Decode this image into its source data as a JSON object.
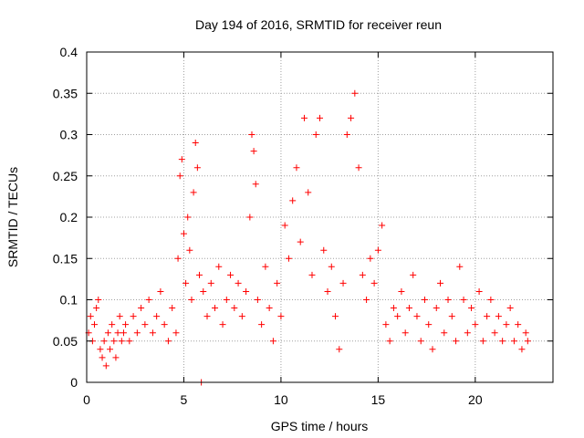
{
  "chart_data": {
    "type": "scatter",
    "title": "Day 194 of 2016, SRMTID for receiver reun",
    "xlabel": "GPS time / hours",
    "ylabel": "SRMTID / TECUs",
    "xlim": [
      0,
      24
    ],
    "ylim": [
      0,
      0.4
    ],
    "xticks": [
      0,
      5,
      10,
      15,
      20
    ],
    "xtick_labels": [
      "0",
      "5",
      "10",
      "15",
      "20"
    ],
    "yticks": [
      0,
      0.05,
      0.1,
      0.15,
      0.2,
      0.25,
      0.3,
      0.35,
      0.4
    ],
    "ytick_labels": [
      "0",
      "0.05",
      "0.1",
      "0.15",
      "0.2",
      "0.25",
      "0.3",
      "0.35",
      "0.4"
    ],
    "grid": true,
    "marker": "+",
    "color": "#ff0000",
    "series": [
      {
        "name": "SRMTID",
        "points": [
          [
            0.1,
            0.06
          ],
          [
            0.2,
            0.08
          ],
          [
            0.3,
            0.05
          ],
          [
            0.4,
            0.07
          ],
          [
            0.5,
            0.09
          ],
          [
            0.6,
            0.1
          ],
          [
            0.7,
            0.04
          ],
          [
            0.8,
            0.03
          ],
          [
            0.9,
            0.05
          ],
          [
            1.0,
            0.02
          ],
          [
            1.1,
            0.06
          ],
          [
            1.2,
            0.04
          ],
          [
            1.3,
            0.07
          ],
          [
            1.4,
            0.05
          ],
          [
            1.5,
            0.03
          ],
          [
            1.6,
            0.06
          ],
          [
            1.7,
            0.08
          ],
          [
            1.8,
            0.05
          ],
          [
            1.9,
            0.06
          ],
          [
            2.0,
            0.07
          ],
          [
            2.2,
            0.05
          ],
          [
            2.4,
            0.08
          ],
          [
            2.6,
            0.06
          ],
          [
            2.8,
            0.09
          ],
          [
            3.0,
            0.07
          ],
          [
            3.2,
            0.1
          ],
          [
            3.4,
            0.06
          ],
          [
            3.6,
            0.08
          ],
          [
            3.8,
            0.11
          ],
          [
            4.0,
            0.07
          ],
          [
            4.2,
            0.05
          ],
          [
            4.4,
            0.09
          ],
          [
            4.6,
            0.06
          ],
          [
            4.7,
            0.15
          ],
          [
            4.8,
            0.25
          ],
          [
            4.9,
            0.27
          ],
          [
            5.0,
            0.18
          ],
          [
            5.1,
            0.12
          ],
          [
            5.2,
            0.2
          ],
          [
            5.3,
            0.16
          ],
          [
            5.4,
            0.1
          ],
          [
            5.5,
            0.23
          ],
          [
            5.6,
            0.29
          ],
          [
            5.7,
            0.26
          ],
          [
            5.8,
            0.13
          ],
          [
            5.9,
            0.0
          ],
          [
            6.0,
            0.11
          ],
          [
            6.2,
            0.08
          ],
          [
            6.4,
            0.12
          ],
          [
            6.6,
            0.09
          ],
          [
            6.8,
            0.14
          ],
          [
            7.0,
            0.07
          ],
          [
            7.2,
            0.1
          ],
          [
            7.4,
            0.13
          ],
          [
            7.6,
            0.09
          ],
          [
            7.8,
            0.12
          ],
          [
            8.0,
            0.08
          ],
          [
            8.2,
            0.11
          ],
          [
            8.4,
            0.2
          ],
          [
            8.5,
            0.3
          ],
          [
            8.6,
            0.28
          ],
          [
            8.7,
            0.24
          ],
          [
            8.8,
            0.1
          ],
          [
            9.0,
            0.07
          ],
          [
            9.2,
            0.14
          ],
          [
            9.4,
            0.09
          ],
          [
            9.6,
            0.05
          ],
          [
            9.8,
            0.12
          ],
          [
            10.0,
            0.08
          ],
          [
            10.2,
            0.19
          ],
          [
            10.4,
            0.15
          ],
          [
            10.6,
            0.22
          ],
          [
            10.8,
            0.26
          ],
          [
            11.0,
            0.17
          ],
          [
            11.2,
            0.32
          ],
          [
            11.4,
            0.23
          ],
          [
            11.6,
            0.13
          ],
          [
            11.8,
            0.3
          ],
          [
            12.0,
            0.32
          ],
          [
            12.2,
            0.16
          ],
          [
            12.4,
            0.11
          ],
          [
            12.6,
            0.14
          ],
          [
            12.8,
            0.08
          ],
          [
            13.0,
            0.04
          ],
          [
            13.2,
            0.12
          ],
          [
            13.4,
            0.3
          ],
          [
            13.6,
            0.32
          ],
          [
            13.8,
            0.35
          ],
          [
            14.0,
            0.26
          ],
          [
            14.2,
            0.13
          ],
          [
            14.4,
            0.1
          ],
          [
            14.6,
            0.15
          ],
          [
            14.8,
            0.12
          ],
          [
            15.0,
            0.16
          ],
          [
            15.2,
            0.19
          ],
          [
            15.4,
            0.07
          ],
          [
            15.6,
            0.05
          ],
          [
            15.8,
            0.09
          ],
          [
            16.0,
            0.08
          ],
          [
            16.2,
            0.11
          ],
          [
            16.4,
            0.06
          ],
          [
            16.6,
            0.09
          ],
          [
            16.8,
            0.13
          ],
          [
            17.0,
            0.08
          ],
          [
            17.2,
            0.05
          ],
          [
            17.4,
            0.1
          ],
          [
            17.6,
            0.07
          ],
          [
            17.8,
            0.04
          ],
          [
            18.0,
            0.09
          ],
          [
            18.2,
            0.12
          ],
          [
            18.4,
            0.06
          ],
          [
            18.6,
            0.1
          ],
          [
            18.8,
            0.08
          ],
          [
            19.0,
            0.05
          ],
          [
            19.2,
            0.14
          ],
          [
            19.4,
            0.1
          ],
          [
            19.6,
            0.06
          ],
          [
            19.8,
            0.09
          ],
          [
            20.0,
            0.07
          ],
          [
            20.2,
            0.11
          ],
          [
            20.4,
            0.05
          ],
          [
            20.6,
            0.08
          ],
          [
            20.8,
            0.1
          ],
          [
            21.0,
            0.06
          ],
          [
            21.2,
            0.08
          ],
          [
            21.4,
            0.05
          ],
          [
            21.6,
            0.07
          ],
          [
            21.8,
            0.09
          ],
          [
            22.0,
            0.05
          ],
          [
            22.2,
            0.07
          ],
          [
            22.4,
            0.04
          ],
          [
            22.6,
            0.06
          ],
          [
            22.7,
            0.05
          ]
        ]
      }
    ]
  }
}
